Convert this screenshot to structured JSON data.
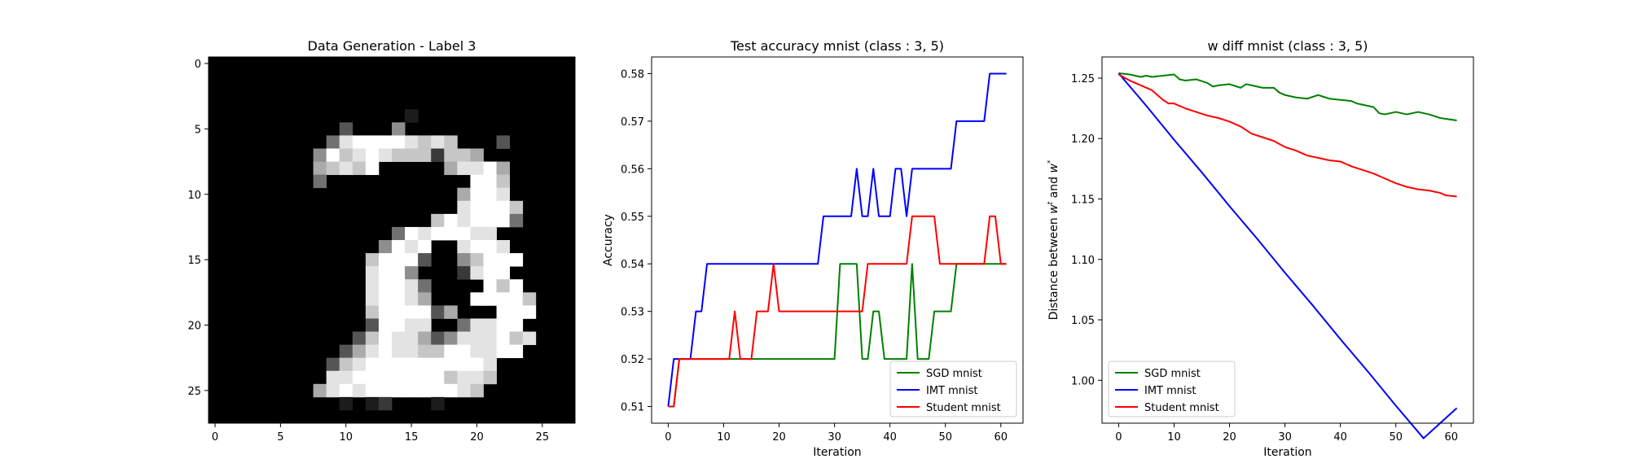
{
  "chart_data": [
    {
      "type": "heatmap",
      "title": "Data Generation - Label 3",
      "xlabel": "",
      "ylabel": "",
      "xlim": [
        -0.5,
        27.5
      ],
      "ylim": [
        27.5,
        -0.5
      ],
      "xticks": [
        0,
        5,
        10,
        15,
        20,
        25
      ],
      "yticks": [
        0,
        5,
        10,
        15,
        20,
        25
      ],
      "colormap": "gray",
      "rows": [
        "............................",
        "............................",
        "............................",
        "............................",
        "...............1............",
        "..........3...5.............",
        ".........4899998787...3.....",
        "........5978987772776.......",
        "........67879.....68896.....",
        "........4...........997.....",
        "...................6998.....",
        "...................89997....",
        ".................7989994....",
        "..............49899988......",
        ".............5989..8998.....",
        "............79993..57999....",
        "............8995...2899.....",
        "............89984....979....",
        "............89986...99997...",
        "............7999936...999...",
        "............39988..48899....",
        "...........37988635888978...",
        "..........36898877998899....",
        ".........3789999999998......",
        ".........8899999997887......",
        "........6898999999987.......",
        "..........1.12...1..........",
        "............................"
      ]
    },
    {
      "type": "line",
      "title": "Test accuracy mnist (class : 3, 5)",
      "xlabel": "Iteration",
      "ylabel": "Accuracy",
      "xlim": [
        -3,
        64
      ],
      "ylim": [
        0.5065,
        0.5835
      ],
      "xticks": [
        0,
        10,
        20,
        30,
        40,
        50,
        60
      ],
      "yticks": [
        "0.51",
        "0.52",
        "0.53",
        "0.54",
        "0.55",
        "0.56",
        "0.57",
        "0.58"
      ],
      "legend_position": "lower right",
      "series": [
        {
          "name": "SGD mnist",
          "color": "#008000",
          "x": [
            0,
            1,
            2,
            3,
            4,
            5,
            6,
            7,
            8,
            9,
            10,
            11,
            12,
            13,
            14,
            15,
            16,
            17,
            18,
            19,
            20,
            21,
            22,
            23,
            24,
            25,
            26,
            27,
            28,
            29,
            30,
            31,
            32,
            33,
            34,
            35,
            36,
            37,
            38,
            39,
            40,
            41,
            42,
            43,
            44,
            45,
            46,
            47,
            48,
            49,
            50,
            51,
            52,
            53,
            54,
            55,
            56,
            57,
            58,
            59,
            60,
            61
          ],
          "values": [
            0.51,
            0.51,
            0.52,
            0.52,
            0.52,
            0.52,
            0.52,
            0.52,
            0.52,
            0.52,
            0.52,
            0.52,
            0.52,
            0.52,
            0.52,
            0.52,
            0.52,
            0.52,
            0.52,
            0.52,
            0.52,
            0.52,
            0.52,
            0.52,
            0.52,
            0.52,
            0.52,
            0.52,
            0.52,
            0.52,
            0.52,
            0.54,
            0.54,
            0.54,
            0.54,
            0.52,
            0.52,
            0.53,
            0.53,
            0.52,
            0.52,
            0.52,
            0.52,
            0.52,
            0.54,
            0.52,
            0.52,
            0.52,
            0.53,
            0.53,
            0.53,
            0.53,
            0.54,
            0.54,
            0.54,
            0.54,
            0.54,
            0.54,
            0.54,
            0.54,
            0.54,
            0.54
          ]
        },
        {
          "name": "IMT mnist",
          "color": "#0000ff",
          "x": [
            0,
            1,
            2,
            3,
            4,
            5,
            6,
            7,
            8,
            9,
            10,
            11,
            12,
            13,
            14,
            15,
            16,
            17,
            18,
            19,
            20,
            21,
            22,
            23,
            24,
            25,
            26,
            27,
            28,
            29,
            30,
            31,
            32,
            33,
            34,
            35,
            36,
            37,
            38,
            39,
            40,
            41,
            42,
            43,
            44,
            45,
            46,
            47,
            48,
            49,
            50,
            51,
            52,
            53,
            54,
            55,
            56,
            57,
            58,
            59,
            60,
            61
          ],
          "values": [
            0.51,
            0.52,
            0.52,
            0.52,
            0.52,
            0.53,
            0.53,
            0.54,
            0.54,
            0.54,
            0.54,
            0.54,
            0.54,
            0.54,
            0.54,
            0.54,
            0.54,
            0.54,
            0.54,
            0.54,
            0.54,
            0.54,
            0.54,
            0.54,
            0.54,
            0.54,
            0.54,
            0.54,
            0.55,
            0.55,
            0.55,
            0.55,
            0.55,
            0.55,
            0.56,
            0.55,
            0.55,
            0.56,
            0.55,
            0.55,
            0.55,
            0.56,
            0.56,
            0.55,
            0.56,
            0.56,
            0.56,
            0.56,
            0.56,
            0.56,
            0.56,
            0.56,
            0.57,
            0.57,
            0.57,
            0.57,
            0.57,
            0.57,
            0.58,
            0.58,
            0.58,
            0.58
          ]
        },
        {
          "name": "Student mnist",
          "color": "#ff0000",
          "x": [
            0,
            1,
            2,
            3,
            4,
            5,
            6,
            7,
            8,
            9,
            10,
            11,
            12,
            13,
            14,
            15,
            16,
            17,
            18,
            19,
            20,
            21,
            22,
            23,
            24,
            25,
            26,
            27,
            28,
            29,
            30,
            31,
            32,
            33,
            34,
            35,
            36,
            37,
            38,
            39,
            40,
            41,
            42,
            43,
            44,
            45,
            46,
            47,
            48,
            49,
            50,
            51,
            52,
            53,
            54,
            55,
            56,
            57,
            58,
            59,
            60,
            61
          ],
          "values": [
            0.51,
            0.51,
            0.52,
            0.52,
            0.52,
            0.52,
            0.52,
            0.52,
            0.52,
            0.52,
            0.52,
            0.52,
            0.53,
            0.52,
            0.52,
            0.52,
            0.53,
            0.53,
            0.53,
            0.54,
            0.53,
            0.53,
            0.53,
            0.53,
            0.53,
            0.53,
            0.53,
            0.53,
            0.53,
            0.53,
            0.53,
            0.53,
            0.53,
            0.53,
            0.53,
            0.53,
            0.54,
            0.54,
            0.54,
            0.54,
            0.54,
            0.54,
            0.54,
            0.54,
            0.55,
            0.55,
            0.55,
            0.55,
            0.55,
            0.54,
            0.54,
            0.54,
            0.54,
            0.54,
            0.54,
            0.54,
            0.54,
            0.54,
            0.55,
            0.55,
            0.54,
            0.54
          ]
        }
      ]
    },
    {
      "type": "line",
      "title": "w diff mnist (class : 3, 5)",
      "xlabel": "Iteration",
      "ylabel_parts": [
        "Distance between ",
        "w",
        "t",
        " and ",
        "w",
        "*"
      ],
      "xlim": [
        -3,
        64
      ],
      "ylim": [
        0.9645,
        1.2675
      ],
      "xticks": [
        0,
        10,
        20,
        30,
        40,
        50,
        60
      ],
      "yticks": [
        "1.00",
        "1.05",
        "1.10",
        "1.15",
        "1.20",
        "1.25"
      ],
      "legend_position": "lower left",
      "series": [
        {
          "name": "SGD mnist",
          "color": "#008000",
          "x": [
            0,
            2,
            4,
            5,
            6,
            8,
            10,
            11,
            12,
            14,
            16,
            17,
            18,
            20,
            22,
            23,
            24,
            26,
            28,
            29,
            30,
            32,
            34,
            36,
            38,
            40,
            42,
            43,
            44,
            46,
            47,
            48,
            50,
            52,
            54,
            56,
            58,
            61
          ],
          "values": [
            1.254,
            1.253,
            1.251,
            1.252,
            1.251,
            1.252,
            1.253,
            1.249,
            1.248,
            1.249,
            1.246,
            1.243,
            1.244,
            1.245,
            1.242,
            1.245,
            1.244,
            1.242,
            1.242,
            1.238,
            1.236,
            1.234,
            1.233,
            1.236,
            1.233,
            1.232,
            1.231,
            1.229,
            1.228,
            1.226,
            1.221,
            1.22,
            1.222,
            1.22,
            1.222,
            1.22,
            1.217,
            1.215
          ]
        },
        {
          "name": "IMT mnist",
          "color": "#0000ff",
          "x": [
            0,
            5,
            10,
            15,
            20,
            25,
            30,
            35,
            40,
            45,
            50,
            55,
            61
          ],
          "values": [
            1.254,
            1.227,
            1.199,
            1.172,
            1.144,
            1.117,
            1.089,
            1.062,
            1.034,
            1.007,
            0.979,
            0.952,
            0.977
          ]
        },
        {
          "name": "Student mnist",
          "color": "#ff0000",
          "x": [
            0,
            2,
            4,
            6,
            8,
            9,
            10,
            12,
            14,
            16,
            18,
            20,
            22,
            24,
            26,
            28,
            30,
            32,
            34,
            36,
            38,
            40,
            42,
            44,
            46,
            48,
            50,
            52,
            54,
            56,
            58,
            59,
            61
          ],
          "values": [
            1.253,
            1.248,
            1.244,
            1.24,
            1.232,
            1.229,
            1.229,
            1.225,
            1.222,
            1.219,
            1.217,
            1.214,
            1.21,
            1.204,
            1.201,
            1.198,
            1.193,
            1.19,
            1.186,
            1.184,
            1.182,
            1.181,
            1.177,
            1.174,
            1.171,
            1.167,
            1.163,
            1.16,
            1.158,
            1.157,
            1.155,
            1.153,
            1.152
          ]
        }
      ]
    }
  ]
}
